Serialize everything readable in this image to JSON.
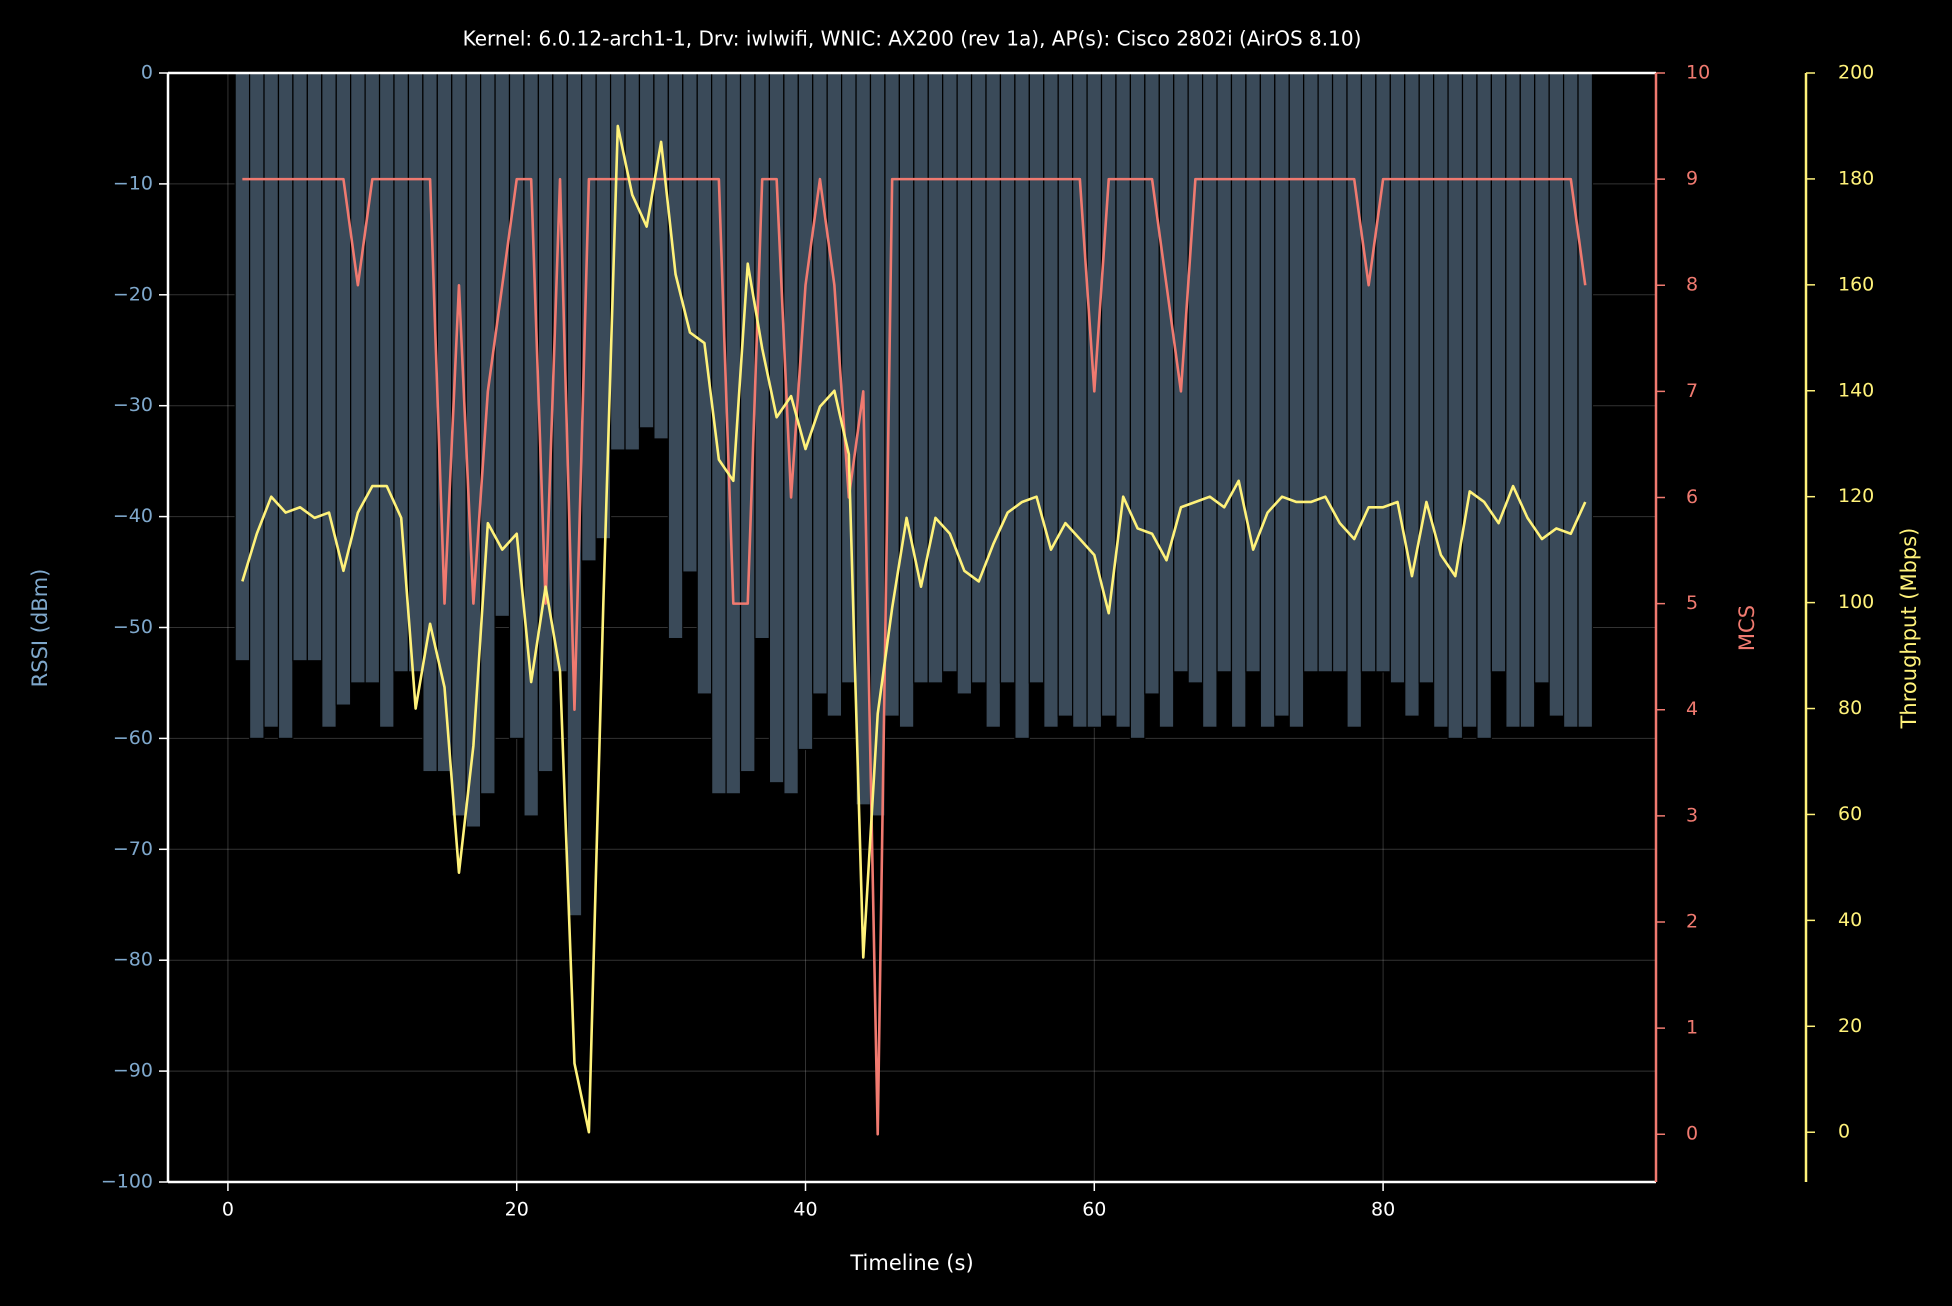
{
  "chart_data": {
    "type": "bar",
    "title": "Kernel: 6.0.12-arch1-1, Drv: iwlwifi, WNIC: AX200 (rev 1a), AP(s): Cisco 2802i (AirOS 8.10)",
    "xlabel": "Timeline (s)",
    "ylabel": "RSSI (dBm)",
    "y2label": "MCS",
    "y3label": "Throughput (Mbps)",
    "grid": true,
    "x": [
      1,
      2,
      3,
      4,
      5,
      6,
      7,
      8,
      9,
      10,
      11,
      12,
      13,
      14,
      15,
      16,
      17,
      18,
      19,
      20,
      21,
      22,
      23,
      24,
      25,
      26,
      27,
      28,
      29,
      30,
      31,
      32,
      33,
      34,
      35,
      36,
      37,
      38,
      39,
      40,
      41,
      42,
      43,
      44,
      45,
      46,
      47,
      48,
      49,
      50,
      51,
      52,
      53,
      54,
      55,
      56,
      57,
      58,
      59,
      60,
      61,
      62,
      63,
      64,
      65,
      66,
      67,
      68,
      69,
      70,
      71,
      72,
      73,
      74,
      75,
      76,
      77,
      78,
      79,
      80,
      81,
      82,
      83,
      84,
      85,
      86,
      87,
      88,
      89,
      90,
      91,
      92,
      93,
      94
    ],
    "xlim": [
      -4.15,
      98.9
    ],
    "xticks": [
      0,
      20,
      40,
      60,
      80
    ],
    "ylim": [
      -100,
      0
    ],
    "yticks": [
      0,
      {
        "value": -10,
        "label": "−10"
      },
      {
        "value": -20,
        "label": "−20"
      },
      {
        "value": -30,
        "label": "−30"
      },
      {
        "value": -40,
        "label": "−40"
      },
      {
        "value": -50,
        "label": "−50"
      },
      {
        "value": -60,
        "label": "−60"
      },
      {
        "value": -70,
        "label": "−70"
      },
      {
        "value": -80,
        "label": "−80"
      },
      {
        "value": -90,
        "label": "−90"
      },
      {
        "value": -100,
        "label": "−100"
      }
    ],
    "y2lim": [
      -0.45,
      10
    ],
    "y2ticks": [
      0,
      1,
      2,
      3,
      4,
      5,
      6,
      7,
      8,
      9,
      10
    ],
    "y3lim": [
      -9.4,
      200
    ],
    "y3ticks": [
      0,
      20,
      40,
      60,
      80,
      100,
      120,
      140,
      160,
      180,
      200
    ],
    "series": [
      {
        "type": "bar",
        "color": "#3a4a59",
        "values": [
          -53,
          -60,
          -59,
          -60,
          -53,
          -53,
          -59,
          -57,
          -55,
          -55,
          -59,
          -54,
          -54,
          -63,
          -63,
          -67,
          -68,
          -65,
          -49,
          -60,
          -67,
          -63,
          -54,
          -76,
          -44,
          -42,
          -34,
          -34,
          -32,
          -33,
          -51,
          -45,
          -56,
          -65,
          -65,
          -63,
          -51,
          -64,
          -65,
          -61,
          -56,
          -58,
          -55,
          -66,
          -67,
          -58,
          -59,
          -55,
          -55,
          -54,
          -56,
          -55,
          -59,
          -55,
          -60,
          -55,
          -59,
          -58,
          -59,
          -59,
          -58,
          -59,
          -60,
          -56,
          -59,
          -54,
          -55,
          -59,
          -54,
          -59,
          -54,
          -59,
          -58,
          -59,
          -54,
          -54,
          -54,
          -59,
          -54,
          -54,
          -55,
          -58,
          -55,
          -59,
          -60,
          -59,
          -60,
          -54,
          -59,
          -59,
          -55,
          -58,
          -59,
          -59
        ]
      },
      {
        "type": "line",
        "axis": "y2",
        "color": "#f07a70",
        "values": [
          9,
          9,
          9,
          9,
          9,
          9,
          9,
          9,
          8,
          9,
          9,
          9,
          9,
          9,
          5,
          8,
          5,
          7,
          8,
          9,
          9,
          5,
          9,
          4,
          9,
          9,
          9,
          9,
          9,
          9,
          9,
          9,
          9,
          9,
          5,
          5,
          9,
          9,
          6,
          8,
          9,
          8,
          6,
          7,
          0,
          9,
          9,
          9,
          9,
          9,
          9,
          9,
          9,
          9,
          9,
          9,
          9,
          9,
          9,
          7,
          9,
          9,
          9,
          9,
          8,
          7,
          9,
          9,
          9,
          9,
          9,
          9,
          9,
          9,
          9,
          9,
          9,
          9,
          8,
          9,
          9,
          9,
          9,
          9,
          9,
          9,
          9,
          9,
          9,
          9,
          9,
          9,
          9,
          8
        ]
      },
      {
        "type": "line",
        "axis": "y3",
        "color": "#fff27a",
        "values": [
          104,
          113,
          120,
          117,
          118,
          116,
          117,
          106,
          117,
          122,
          122,
          116,
          80,
          96,
          84,
          49,
          73,
          115,
          110,
          113,
          85,
          103,
          87,
          13,
          0,
          100,
          190,
          177,
          171,
          187,
          162,
          151,
          149,
          127,
          123,
          164,
          148,
          135,
          139,
          129,
          137,
          140,
          128,
          33,
          79,
          99,
          116,
          103,
          116,
          113,
          106,
          104,
          111,
          117,
          119,
          120,
          110,
          115,
          112,
          109,
          98,
          120,
          114,
          113,
          108,
          118,
          119,
          120,
          118,
          123,
          110,
          117,
          120,
          119,
          119,
          120,
          115,
          112,
          118,
          118,
          119,
          105,
          119,
          109,
          105,
          121,
          119,
          115,
          122,
          116,
          112,
          114,
          113,
          119
        ]
      }
    ]
  }
}
